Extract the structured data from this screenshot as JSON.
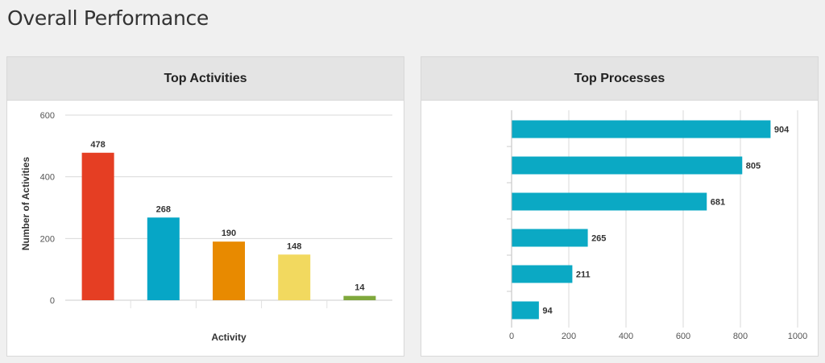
{
  "page": {
    "title": "Overall Performance"
  },
  "chart_data": [
    {
      "type": "bar",
      "title": "Top Activities",
      "xlabel": "Activity",
      "ylabel": "Number of Activities",
      "ylim": [
        0,
        600
      ],
      "yticks": [
        0,
        200,
        400,
        600
      ],
      "grid": true,
      "categories": [
        "",
        "",
        "",
        "",
        ""
      ],
      "values": [
        478,
        268,
        190,
        148,
        14
      ],
      "colors": [
        "#e53e23",
        "#06a6c6",
        "#e88a00",
        "#f2d95f",
        "#7fa83c"
      ]
    },
    {
      "type": "bar",
      "orientation": "horizontal",
      "title": "Top Processes",
      "xlim": [
        0,
        1000
      ],
      "xticks": [
        0,
        200,
        400,
        600,
        800,
        1000
      ],
      "grid": true,
      "categories": [
        "",
        "",
        "",
        "",
        "",
        ""
      ],
      "values": [
        904,
        805,
        681,
        265,
        211,
        94
      ],
      "colors": [
        "#0ba9c4"
      ]
    }
  ]
}
